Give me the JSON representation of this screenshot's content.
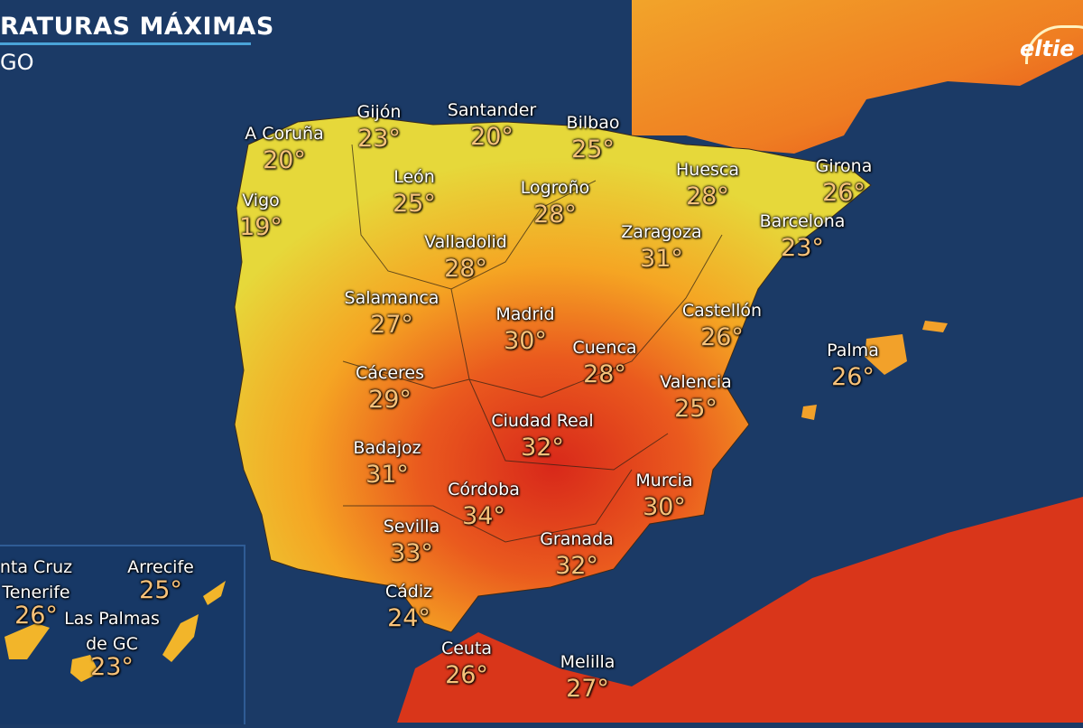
{
  "header": {
    "title": "RATURAS MÁXIMAS",
    "subtitle": "GO"
  },
  "logo": {
    "text": "eltie"
  },
  "colors": {
    "sea": "#1b3a66",
    "cool": "#d8e13a",
    "warm": "#f4a11f",
    "hot": "#e8461c",
    "very_hot": "#c81e10",
    "temp_label": "#f7c27a"
  },
  "cities": [
    {
      "name": "A Coruña",
      "temp": "20°"
    },
    {
      "name": "Gijón",
      "temp": "23°"
    },
    {
      "name": "Santander",
      "temp": "20°"
    },
    {
      "name": "Bilbao",
      "temp": "25°"
    },
    {
      "name": "Vigo",
      "temp": "19°"
    },
    {
      "name": "León",
      "temp": "25°"
    },
    {
      "name": "Logroño",
      "temp": "28°"
    },
    {
      "name": "Huesca",
      "temp": "28°"
    },
    {
      "name": "Girona",
      "temp": "26°"
    },
    {
      "name": "Barcelona",
      "temp": "23°"
    },
    {
      "name": "Zaragoza",
      "temp": "31°"
    },
    {
      "name": "Valladolid",
      "temp": "28°"
    },
    {
      "name": "Salamanca",
      "temp": "27°"
    },
    {
      "name": "Madrid",
      "temp": "30°"
    },
    {
      "name": "Castellón",
      "temp": "26°"
    },
    {
      "name": "Cuenca",
      "temp": "28°"
    },
    {
      "name": "Palma",
      "temp": "26°"
    },
    {
      "name": "Cáceres",
      "temp": "29°"
    },
    {
      "name": "Valencia",
      "temp": "25°"
    },
    {
      "name": "Ciudad Real",
      "temp": "32°"
    },
    {
      "name": "Badajoz",
      "temp": "31°"
    },
    {
      "name": "Murcia",
      "temp": "30°"
    },
    {
      "name": "Córdoba",
      "temp": "34°"
    },
    {
      "name": "Sevilla",
      "temp": "33°"
    },
    {
      "name": "Granada",
      "temp": "32°"
    },
    {
      "name": "Cádiz",
      "temp": "24°"
    },
    {
      "name": "Ceuta",
      "temp": "26°"
    },
    {
      "name": "Melilla",
      "temp": "27°"
    }
  ],
  "canarias": [
    {
      "name_line1": "nta Cruz",
      "name_line2": "Tenerife",
      "temp": "26°"
    },
    {
      "name_line1": "Arrecife",
      "temp": "25°"
    },
    {
      "name_line1": "Las Palmas",
      "name_line2": "de GC",
      "temp": "23°"
    }
  ]
}
